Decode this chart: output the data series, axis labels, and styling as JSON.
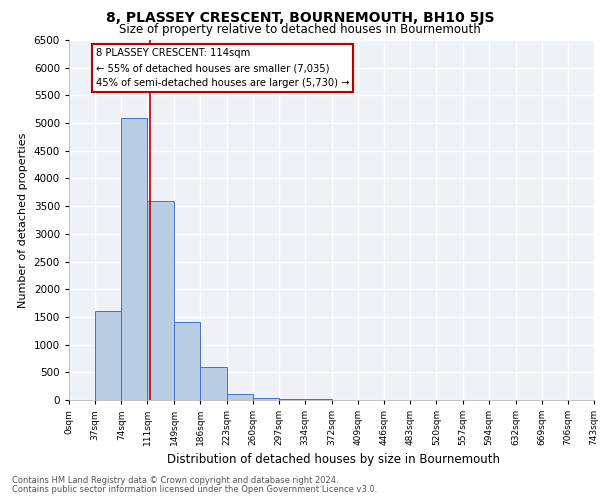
{
  "title": "8, PLASSEY CRESCENT, BOURNEMOUTH, BH10 5JS",
  "subtitle": "Size of property relative to detached houses in Bournemouth",
  "xlabel": "Distribution of detached houses by size in Bournemouth",
  "ylabel": "Number of detached properties",
  "footer_line1": "Contains HM Land Registry data © Crown copyright and database right 2024.",
  "footer_line2": "Contains public sector information licensed under the Open Government Licence v3.0.",
  "bin_edges": [
    0,
    37,
    74,
    111,
    149,
    186,
    223,
    260,
    297,
    334,
    372,
    409,
    446,
    483,
    520,
    557,
    594,
    632,
    669,
    706,
    743
  ],
  "bar_values": [
    0,
    1600,
    5100,
    3600,
    1400,
    600,
    100,
    30,
    15,
    10,
    5,
    3,
    2,
    1,
    1,
    0,
    0,
    0,
    0,
    0
  ],
  "bar_color": "#b8cce4",
  "bar_edgecolor": "#4472c4",
  "property_size": 114,
  "vline_color": "#c00000",
  "annotation_text1": "8 PLASSEY CRESCENT: 114sqm",
  "annotation_text2": "← 55% of detached houses are smaller (7,035)",
  "annotation_text3": "45% of semi-detached houses are larger (5,730) →",
  "annotation_box_edgecolor": "#c00000",
  "annotation_box_facecolor": "#ffffff",
  "ylim": [
    0,
    6500
  ],
  "yticks": [
    0,
    500,
    1000,
    1500,
    2000,
    2500,
    3000,
    3500,
    4000,
    4500,
    5000,
    5500,
    6000,
    6500
  ],
  "tick_labels": [
    "0sqm",
    "37sqm",
    "74sqm",
    "111sqm",
    "149sqm",
    "186sqm",
    "223sqm",
    "260sqm",
    "297sqm",
    "334sqm",
    "372sqm",
    "409sqm",
    "446sqm",
    "483sqm",
    "520sqm",
    "557sqm",
    "594sqm",
    "632sqm",
    "669sqm",
    "706sqm",
    "743sqm"
  ],
  "bg_color": "#eef2f7",
  "grid_color": "#ffffff"
}
